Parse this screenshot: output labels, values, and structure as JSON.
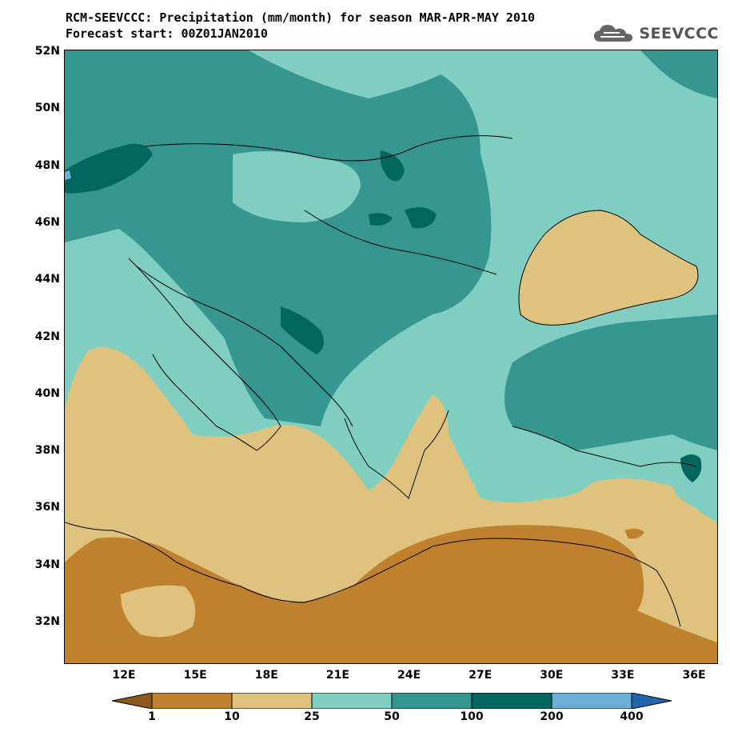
{
  "title": {
    "line1": "RCM-SEEVCCC: Precipitation (mm/month) for season MAR-APR-MAY 2010",
    "line2": "Forecast start: 00Z01JAN2010"
  },
  "logo": {
    "text": "SEEVCCC",
    "icon": "cloud-icon"
  },
  "map": {
    "latitude_labels": [
      "52N",
      "50N",
      "48N",
      "46N",
      "44N",
      "42N",
      "40N",
      "38N",
      "36N",
      "34N",
      "32N"
    ],
    "longitude_labels": [
      "12E",
      "15E",
      "18E",
      "21E",
      "24E",
      "27E",
      "30E",
      "33E",
      "36E"
    ],
    "lat_range": [
      30.5,
      52
    ],
    "lon_range": [
      9.5,
      37
    ]
  },
  "colorbar": {
    "boundaries": [
      "1",
      "10",
      "25",
      "50",
      "100",
      "200",
      "400"
    ],
    "colors": [
      "#8c5a1c",
      "#bf812d",
      "#dfc27d",
      "#80cdc1",
      "#35978f",
      "#01665e",
      "#6baed6",
      "#2166ac"
    ]
  }
}
